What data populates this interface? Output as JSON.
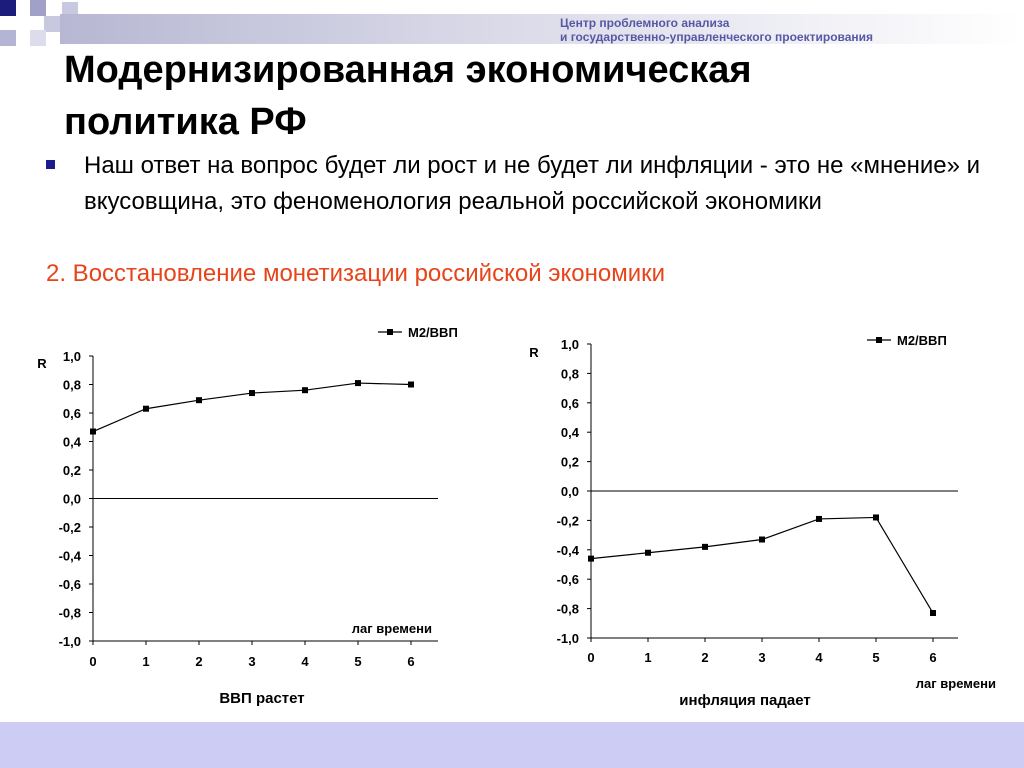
{
  "header": {
    "org_line1": "Центр проблемного анализа",
    "org_line2": "и государственно-управленческого проектирования"
  },
  "slide": {
    "title_line1": "Модернизированная экономическая",
    "title_line2": "политика РФ",
    "bullet": "Наш ответ на вопрос будет ли рост и не будет ли инфляции - это не «мнение» и вкусовщина, это феноменология реальной российской экономики",
    "subheading": "2. Восстановление монетизации российской экономики"
  },
  "colors": {
    "accent_text": "#e8441a",
    "org_text": "#5757a6",
    "bullet_marker": "#1c1c8c",
    "footer": "#ccccf5"
  },
  "chart_data": [
    {
      "type": "line",
      "ylabel": "R",
      "xlabel": "лаг времени",
      "caption": "ВВП растет",
      "x": [
        0,
        1,
        2,
        3,
        4,
        5,
        6
      ],
      "ylim": [
        -1.0,
        1.0
      ],
      "yticks": [
        "1,0",
        "0,8",
        "0,6",
        "0,4",
        "0,2",
        "0,0",
        "-0,2",
        "-0,4",
        "-0,6",
        "-0,8",
        "-1,0"
      ],
      "series": [
        {
          "name": "М2/ВВП",
          "values": [
            0.47,
            0.63,
            0.69,
            0.74,
            0.76,
            0.81,
            0.8
          ]
        }
      ],
      "legend": "top-right",
      "grid": false
    },
    {
      "type": "line",
      "ylabel": "R",
      "xlabel": "лаг времени",
      "caption": "инфляция падает",
      "x": [
        0,
        1,
        2,
        3,
        4,
        5,
        6
      ],
      "ylim": [
        -1.0,
        1.0
      ],
      "yticks": [
        "1,0",
        "0,8",
        "0,6",
        "0,4",
        "0,2",
        "0,0",
        "-0,2",
        "-0,4",
        "-0,6",
        "-0,8",
        "-1,0"
      ],
      "series": [
        {
          "name": "М2/ВВП",
          "values": [
            -0.46,
            -0.42,
            -0.38,
            -0.33,
            -0.19,
            -0.18,
            -0.83
          ]
        }
      ],
      "legend": "top-right",
      "grid": false
    }
  ]
}
